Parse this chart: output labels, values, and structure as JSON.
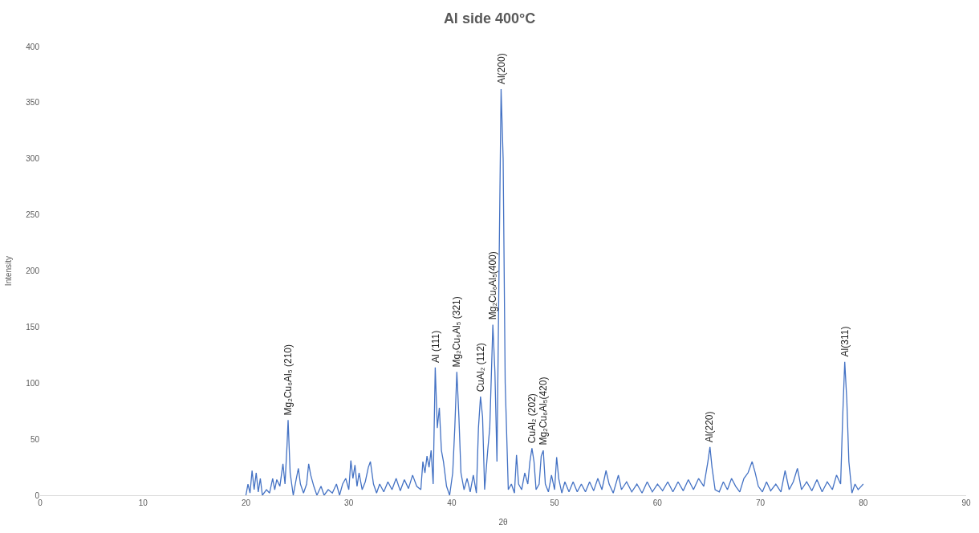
{
  "chart_data": {
    "type": "line",
    "title": "Al side 400°C",
    "xlabel": "2θ",
    "ylabel": "Intensity",
    "xlim": [
      0,
      90
    ],
    "xticks": [
      0,
      10,
      20,
      30,
      40,
      50,
      60,
      70,
      80,
      90
    ],
    "ylim": [
      0,
      400
    ],
    "yticks": [
      0,
      50,
      100,
      150,
      200,
      250,
      300,
      350,
      400
    ],
    "grid": false,
    "marker": "none",
    "line_style": "solid",
    "x": [
      20.0,
      20.2,
      20.4,
      20.6,
      20.8,
      21.0,
      21.2,
      21.4,
      21.6,
      22.0,
      22.3,
      22.6,
      22.8,
      23.0,
      23.3,
      23.6,
      23.8,
      24.0,
      24.1,
      24.3,
      24.6,
      24.9,
      25.1,
      25.3,
      25.6,
      25.9,
      26.1,
      26.3,
      26.6,
      26.9,
      27.3,
      27.6,
      28.0,
      28.4,
      28.8,
      29.1,
      29.4,
      29.7,
      30.0,
      30.2,
      30.4,
      30.6,
      30.8,
      31.0,
      31.3,
      31.6,
      31.9,
      32.1,
      32.4,
      32.7,
      33.0,
      33.4,
      33.8,
      34.2,
      34.6,
      35.0,
      35.4,
      35.8,
      36.2,
      36.6,
      37.0,
      37.2,
      37.4,
      37.6,
      37.8,
      38.0,
      38.2,
      38.4,
      38.6,
      38.8,
      39.0,
      39.2,
      39.5,
      39.8,
      40.1,
      40.3,
      40.5,
      40.7,
      40.9,
      41.2,
      41.5,
      41.8,
      42.1,
      42.4,
      42.6,
      42.8,
      43.0,
      43.2,
      43.5,
      43.7,
      44.0,
      44.2,
      44.4,
      44.6,
      44.8,
      45.0,
      45.2,
      45.5,
      45.8,
      46.1,
      46.3,
      46.5,
      46.8,
      47.1,
      47.4,
      47.6,
      47.8,
      48.0,
      48.2,
      48.5,
      48.7,
      48.9,
      49.1,
      49.4,
      49.7,
      50.0,
      50.2,
      50.4,
      50.7,
      51.0,
      51.4,
      51.8,
      52.2,
      52.6,
      53.0,
      53.4,
      53.8,
      54.2,
      54.6,
      55.0,
      55.3,
      55.7,
      56.2,
      56.5,
      57.0,
      57.5,
      58.0,
      58.5,
      59.0,
      59.5,
      60.0,
      60.5,
      61.0,
      61.5,
      62.0,
      62.5,
      63.0,
      63.5,
      64.0,
      64.5,
      64.9,
      65.1,
      65.3,
      65.6,
      66.0,
      66.4,
      66.8,
      67.2,
      67.6,
      68.0,
      68.4,
      68.8,
      69.2,
      69.5,
      69.8,
      70.2,
      70.6,
      71.0,
      71.5,
      72.0,
      72.4,
      72.8,
      73.2,
      73.6,
      74.0,
      74.5,
      75.0,
      75.5,
      76.0,
      76.5,
      77.0,
      77.4,
      77.8,
      78.0,
      78.2,
      78.4,
      78.6,
      78.9,
      79.2,
      79.5,
      79.8,
      80.0
    ],
    "series": [
      {
        "color": "#4472c4",
        "values": [
          0,
          10,
          2,
          22,
          5,
          20,
          3,
          15,
          0,
          5,
          2,
          15,
          5,
          14,
          8,
          28,
          10,
          45,
          67,
          20,
          0,
          15,
          24,
          10,
          2,
          10,
          28,
          18,
          8,
          0,
          8,
          0,
          5,
          2,
          10,
          0,
          10,
          15,
          5,
          31,
          15,
          27,
          8,
          20,
          5,
          12,
          25,
          30,
          10,
          2,
          10,
          3,
          12,
          5,
          15,
          4,
          14,
          6,
          18,
          8,
          5,
          30,
          20,
          35,
          25,
          40,
          10,
          114,
          60,
          78,
          40,
          30,
          8,
          0,
          20,
          60,
          110,
          70,
          20,
          5,
          15,
          3,
          18,
          2,
          60,
          88,
          70,
          5,
          40,
          60,
          152,
          110,
          30,
          200,
          362,
          300,
          100,
          5,
          10,
          2,
          36,
          10,
          5,
          20,
          10,
          30,
          42,
          30,
          5,
          10,
          35,
          40,
          10,
          3,
          18,
          5,
          34,
          15,
          2,
          12,
          3,
          12,
          3,
          10,
          3,
          12,
          4,
          15,
          5,
          22,
          10,
          2,
          18,
          5,
          12,
          3,
          10,
          2,
          12,
          3,
          10,
          4,
          12,
          3,
          12,
          4,
          14,
          5,
          15,
          8,
          30,
          43,
          25,
          5,
          3,
          12,
          5,
          15,
          8,
          3,
          15,
          20,
          30,
          20,
          8,
          3,
          12,
          4,
          10,
          3,
          22,
          5,
          12,
          24,
          5,
          12,
          4,
          14,
          3,
          12,
          5,
          18,
          10,
          70,
          119,
          85,
          30,
          2,
          10,
          5,
          8,
          10
        ]
      }
    ],
    "annotations": [
      {
        "text": "Mg₂Cu₆Al₅ (210)",
        "x": 24.1,
        "y": 67
      },
      {
        "text": "Al (111)",
        "x": 38.4,
        "y": 114
      },
      {
        "text": "Mg₂Cu₆Al₅ (321)",
        "x": 40.5,
        "y": 110
      },
      {
        "text": "CuAl₂ (112)",
        "x": 42.8,
        "y": 88
      },
      {
        "text": "Mg₂Cu₆Al₅(400)",
        "x": 44.0,
        "y": 152
      },
      {
        "text": "Al(200)",
        "x": 44.8,
        "y": 362
      },
      {
        "text": "CuAl₂ (202)",
        "x": 47.8,
        "y": 42
      },
      {
        "text": "Mg₂Cu₆Al₅(420)",
        "x": 48.9,
        "y": 40
      },
      {
        "text": "Al(220)",
        "x": 65.1,
        "y": 43
      },
      {
        "text": "Al(311)",
        "x": 78.2,
        "y": 119
      }
    ]
  }
}
